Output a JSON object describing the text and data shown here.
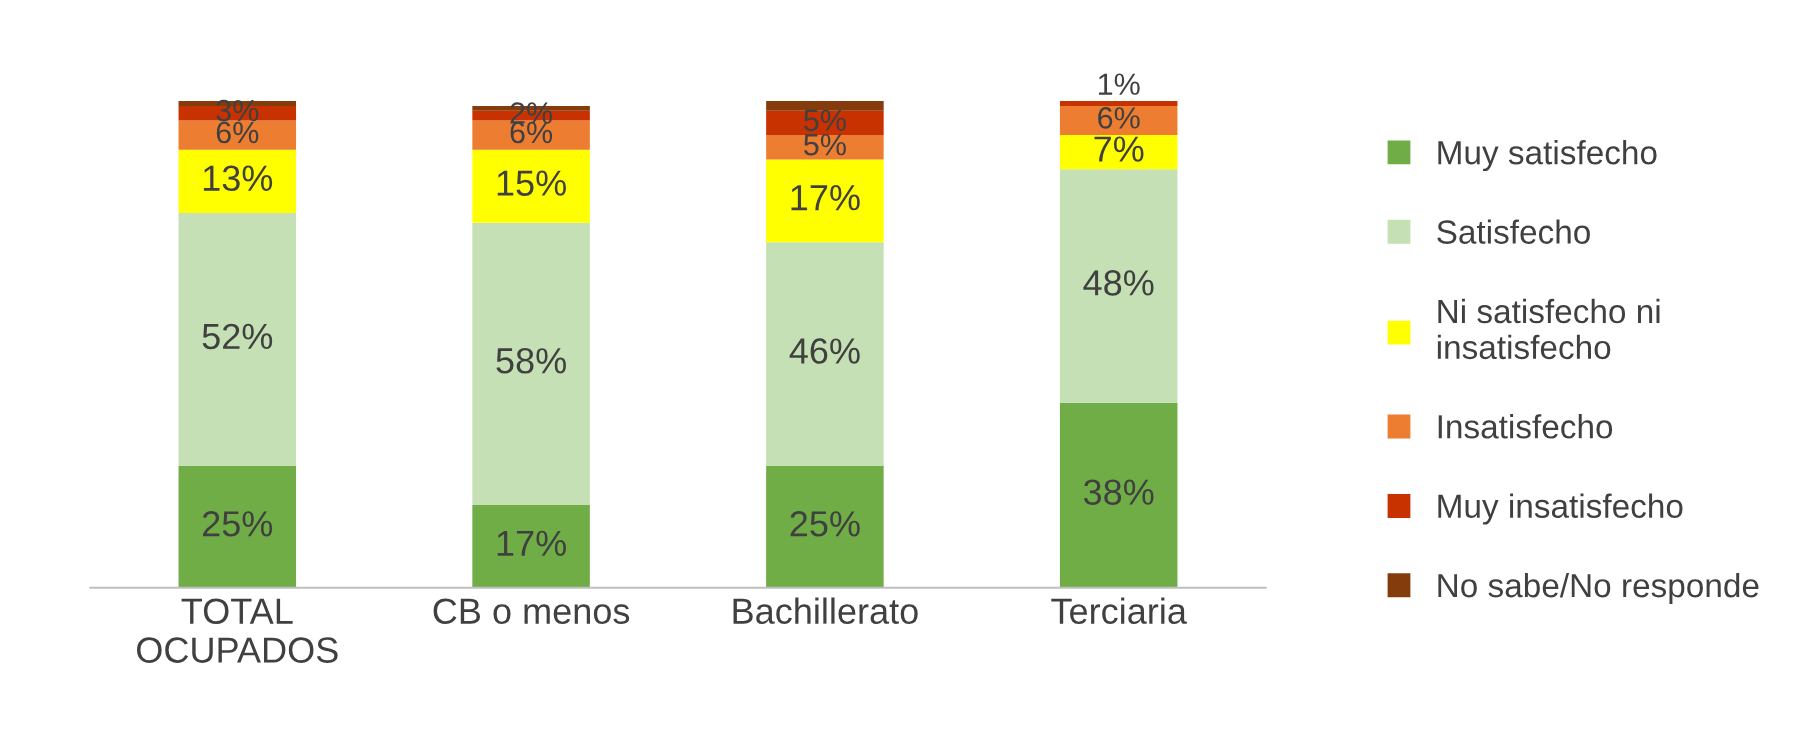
{
  "chart_data": {
    "type": "bar",
    "stacked": true,
    "categories": [
      "TOTAL\nOCUPADOS",
      "CB o menos",
      "Bachillerato",
      "Terciaria"
    ],
    "series": [
      {
        "name": "Muy satisfecho",
        "color": "#70ad47",
        "values": [
          25,
          17,
          25,
          38
        ],
        "value_labels": [
          "25%",
          "17%",
          "25%",
          "38%"
        ]
      },
      {
        "name": "Satisfecho",
        "color": "#c5e0b4",
        "values": [
          52,
          58,
          46,
          48
        ],
        "value_labels": [
          "52%",
          "58%",
          "46%",
          "48%"
        ]
      },
      {
        "name": "Ni satisfecho ni\ninsatisfecho",
        "color": "#ffff00",
        "values": [
          13,
          15,
          17,
          7
        ],
        "value_labels": [
          "13%",
          "15%",
          "17%",
          "7%"
        ]
      },
      {
        "name": "Insatisfecho",
        "color": "#ed7d31",
        "values": [
          6,
          6,
          5,
          6
        ],
        "value_labels": [
          "6%",
          "6%",
          "5%",
          "6%"
        ]
      },
      {
        "name": "Muy insatisfecho",
        "color": "#c83200",
        "values": [
          3,
          2,
          5,
          1
        ],
        "value_labels": [
          "3%",
          "2%",
          "5%",
          "1%"
        ]
      },
      {
        "name": "No sabe/No responde",
        "color": "#843c0c",
        "values": [
          1,
          1,
          2,
          0
        ],
        "value_labels": [
          null,
          null,
          null,
          null
        ]
      }
    ],
    "legend": "right",
    "grid": false
  }
}
